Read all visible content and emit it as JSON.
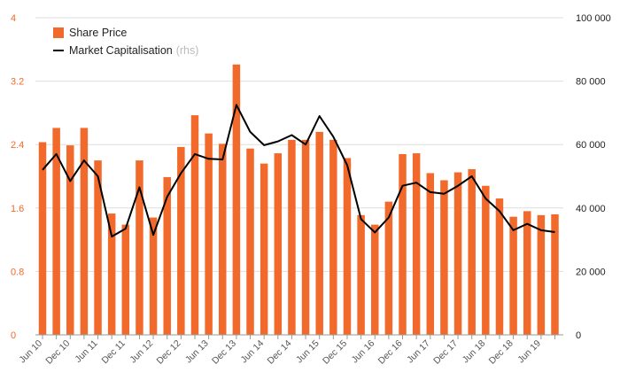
{
  "colors": {
    "bar": "#f26a2b",
    "line": "#000000",
    "left_axis_text": "#f26a2b",
    "right_axis_text": "#222222",
    "grid": "#dddddd",
    "rhs_note": "#bbbbbb"
  },
  "legend": {
    "bar_label": "Share Price",
    "line_label": "Market Capitalisation",
    "line_note": "(rhs)"
  },
  "chart_data": {
    "type": "bar",
    "grid": true,
    "legend_position": "top-left",
    "x_tick_labels": [
      "Jun 10",
      "Dec 10",
      "Jun 11",
      "Dec 11",
      "Jun 12",
      "Dec 12",
      "Jun 13",
      "Dec 13",
      "Jun 14",
      "Dec 14",
      "Jun 15",
      "Dec 15",
      "Jun 16",
      "Dec 16",
      "Jun 17",
      "Dec 17",
      "Jun 18",
      "Dec 18",
      "Jun 19"
    ],
    "y_left": {
      "ylim": [
        0,
        4
      ],
      "ticks": [
        "0",
        "0.8",
        "1.6",
        "2.4",
        "3.2",
        "4"
      ]
    },
    "y_right": {
      "ylim": [
        0,
        100000
      ],
      "ticks": [
        "0",
        "20 000",
        "40 000",
        "60 000",
        "80 000",
        "100 000"
      ]
    },
    "series": [
      {
        "name": "Share Price",
        "type": "bar",
        "axis": "left",
        "values": [
          2.43,
          2.61,
          2.39,
          2.61,
          2.2,
          1.53,
          1.39,
          2.2,
          1.48,
          1.99,
          2.37,
          2.77,
          2.54,
          2.41,
          3.41,
          2.35,
          2.16,
          2.29,
          2.46,
          2.46,
          2.56,
          2.46,
          2.23,
          1.51,
          1.39,
          1.68,
          2.28,
          2.29,
          2.04,
          1.95,
          2.05,
          2.09,
          1.88,
          1.72,
          1.49,
          1.56,
          1.51,
          1.52
        ]
      },
      {
        "name": "Market Capitalisation",
        "type": "line",
        "axis": "right",
        "values": [
          52000,
          57000,
          48500,
          55000,
          50000,
          31000,
          33500,
          46500,
          31500,
          43500,
          51000,
          57000,
          55500,
          55300,
          72500,
          64000,
          59800,
          61000,
          63000,
          60000,
          69000,
          62500,
          53500,
          36500,
          32300,
          37000,
          47000,
          48000,
          45000,
          44500,
          47000,
          50000,
          43000,
          39000,
          33000,
          35000,
          33000,
          32400
        ]
      }
    ]
  }
}
